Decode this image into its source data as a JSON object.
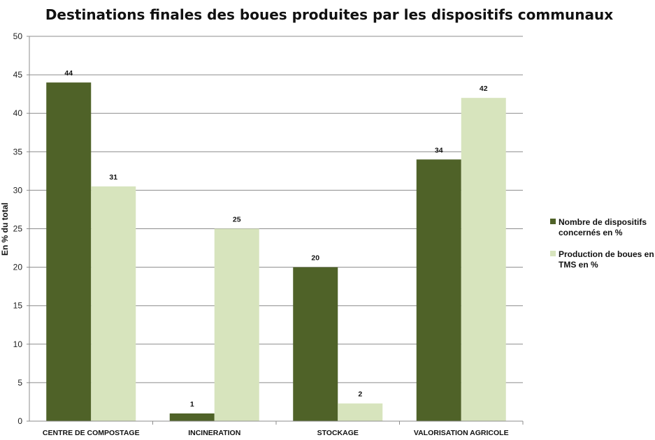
{
  "chart_data": {
    "type": "bar",
    "title": "Destinations finales des boues produites par les dispositifs communaux",
    "xlabel": "",
    "ylabel": "En % du total",
    "ylim": [
      0,
      50
    ],
    "yticks": [
      0,
      5,
      10,
      15,
      20,
      25,
      30,
      35,
      40,
      45,
      50
    ],
    "grid": true,
    "legend_position": "right",
    "categories": [
      "CENTRE DE COMPOSTAGE",
      "INCINERATION",
      "STOCKAGE",
      "VALORISATION AGRICOLE"
    ],
    "series": [
      {
        "name": "Nombre de dispositifs concernés en %",
        "legend_lines": [
          "Nombre de dispositifs",
          "concernés en %"
        ],
        "color": "#4f6228",
        "values": [
          44,
          1,
          20,
          34
        ],
        "labels": [
          "44",
          "1",
          "20",
          "34"
        ]
      },
      {
        "name": "Production de boues en TMS en %",
        "legend_lines": [
          "Production de boues en",
          "TMS en %"
        ],
        "color": "#d7e4bd",
        "values": [
          30.5,
          25,
          2.3,
          42
        ],
        "labels": [
          "31",
          "25",
          "2",
          "42"
        ]
      }
    ]
  }
}
